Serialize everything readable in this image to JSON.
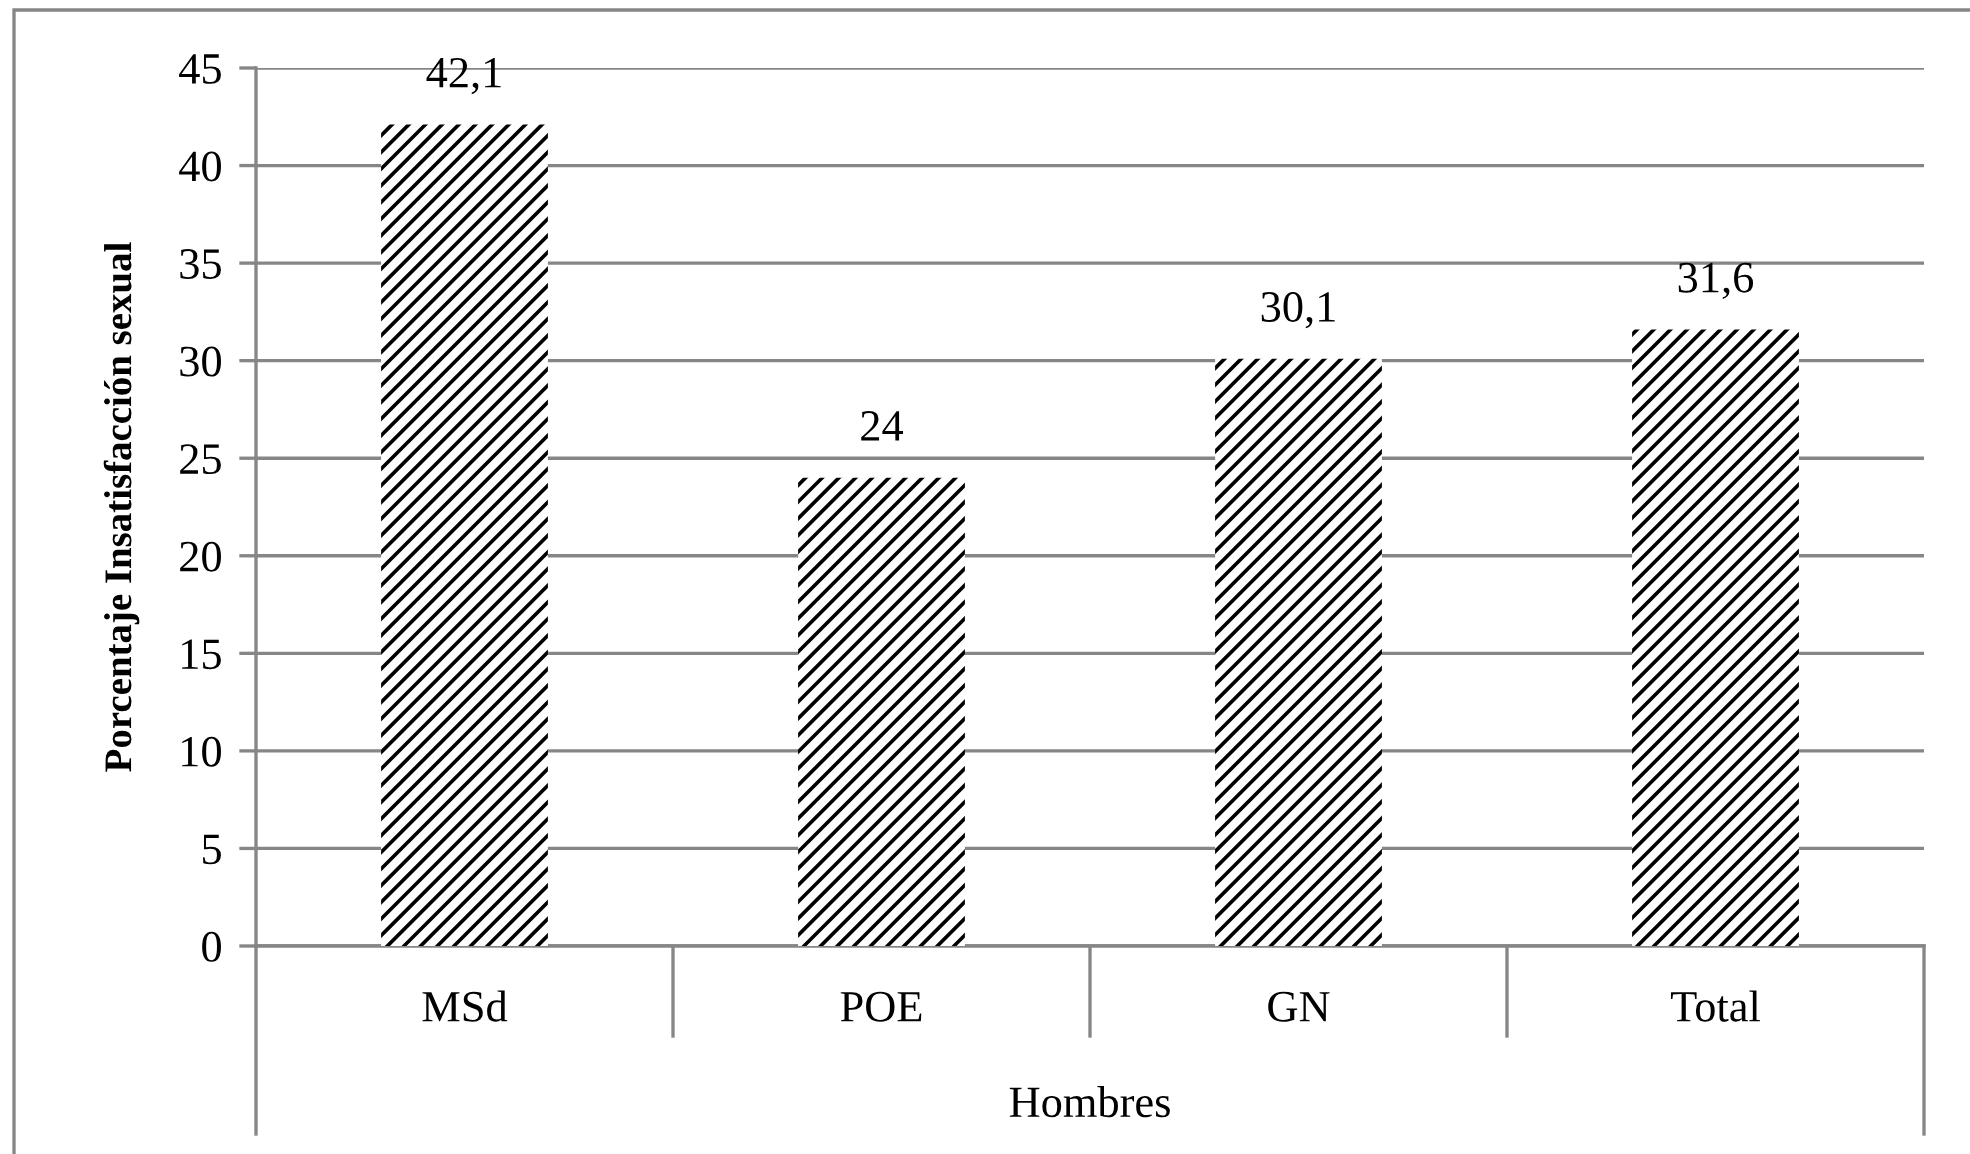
{
  "chart_data": {
    "type": "bar",
    "categories": [
      "MSd",
      "POE",
      "GN",
      "Total"
    ],
    "values": [
      42.1,
      24,
      30.1,
      31.6
    ],
    "value_labels": [
      "42,1",
      "24",
      "30,1",
      "31,6"
    ],
    "color": "#000000",
    "xlabel": "Hombres",
    "ylabel": "Porcentaje Insatisfacción sexual",
    "ylim": [
      0,
      45
    ],
    "yticks": [
      0,
      5,
      10,
      15,
      20,
      25,
      30,
      35,
      40,
      45
    ],
    "grid": "y"
  }
}
